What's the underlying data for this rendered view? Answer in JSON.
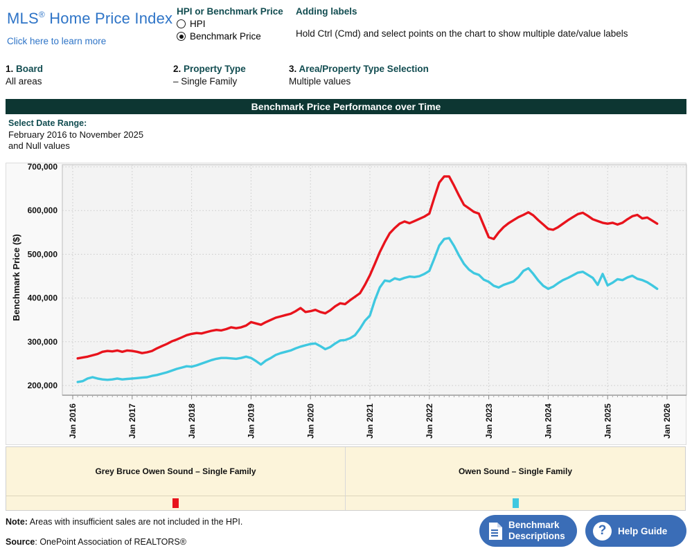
{
  "header": {
    "title": {
      "brand": "MLS",
      "reg": "®",
      "rest": " Home Price Index"
    },
    "learn_more": "Click here to learn more",
    "hpi_selector": {
      "heading": "HPI or Benchmark Price",
      "options": [
        {
          "label": "HPI",
          "selected": false
        },
        {
          "label": "Benchmark Price",
          "selected": true
        }
      ]
    },
    "adding_labels": {
      "heading": "Adding labels",
      "instruction": "Hold Ctrl (Cmd) and select points on the chart to show multiple date/value labels"
    }
  },
  "steps": [
    {
      "num": "1.",
      "label": "Board",
      "value": "All areas"
    },
    {
      "num": "2.",
      "label": "Property Type",
      "value": "– Single Family"
    },
    {
      "num": "3.",
      "label": "Area/Property Type Selection",
      "value": "Multiple values"
    }
  ],
  "banner": {
    "title": "Benchmark Price Performance over Time"
  },
  "date_range": {
    "heading": "Select Date Range:",
    "line1": "February 2016 to November 2025",
    "line2": "and Null values"
  },
  "chart_data": {
    "type": "line",
    "title": "Benchmark Price Performance over Time",
    "ylabel": "Benchmark Price ($)",
    "unit": "dollars (series values stored in thousands)",
    "x_monthly_start": "2016-02",
    "x_monthly_end": "2025-11",
    "x_tick_labels": [
      "Jan 2016",
      "Jan 2017",
      "Jan 2018",
      "Jan 2019",
      "Jan 2020",
      "Jan 2021",
      "Jan 2022",
      "Jan 2023",
      "Jan 2024",
      "Jan 2025",
      "Jan 2026"
    ],
    "y_tick_labels": [
      "200,000",
      "300,000",
      "400,000",
      "500,000",
      "600,000",
      "700,000"
    ],
    "ylim": [
      200000,
      700000
    ],
    "grid": true,
    "legend_position": "bottom",
    "series": [
      {
        "name": "Grey Bruce Owen Sound – Single Family",
        "color": "#e8131c",
        "values_thousands": [
          262,
          264,
          266,
          269,
          272,
          277,
          279,
          278,
          280,
          277,
          280,
          279,
          277,
          274,
          276,
          279,
          285,
          290,
          295,
          301,
          305,
          310,
          315,
          318,
          320,
          319,
          322,
          325,
          327,
          326,
          329,
          333,
          331,
          333,
          337,
          345,
          342,
          339,
          345,
          350,
          355,
          358,
          361,
          364,
          370,
          377,
          368,
          370,
          373,
          368,
          365,
          372,
          381,
          388,
          386,
          395,
          403,
          411,
          430,
          452,
          478,
          505,
          528,
          548,
          560,
          570,
          575,
          571,
          576,
          581,
          586,
          593,
          629,
          664,
          678,
          678,
          657,
          634,
          613,
          605,
          597,
          593,
          566,
          539,
          535,
          550,
          562,
          571,
          578,
          585,
          590,
          596,
          589,
          578,
          568,
          558,
          556,
          562,
          570,
          578,
          585,
          592,
          595,
          588,
          580,
          576,
          572,
          570,
          572,
          568,
          572,
          580,
          587,
          590,
          582,
          584,
          577,
          570
        ]
      },
      {
        "name": "Owen Sound – Single Family",
        "color": "#3fc8e0",
        "values_thousands": [
          208,
          210,
          216,
          219,
          216,
          214,
          213,
          214,
          216,
          214,
          215,
          216,
          217,
          218,
          219,
          222,
          224,
          227,
          230,
          234,
          238,
          241,
          244,
          243,
          246,
          250,
          254,
          258,
          261,
          263,
          263,
          262,
          261,
          263,
          266,
          263,
          256,
          248,
          257,
          263,
          270,
          274,
          277,
          280,
          285,
          289,
          292,
          295,
          296,
          290,
          283,
          288,
          296,
          303,
          304,
          308,
          315,
          330,
          348,
          360,
          395,
          424,
          440,
          438,
          445,
          442,
          446,
          449,
          448,
          450,
          455,
          462,
          490,
          520,
          535,
          537,
          519,
          497,
          478,
          465,
          457,
          453,
          442,
          437,
          428,
          424,
          430,
          434,
          438,
          448,
          462,
          468,
          455,
          440,
          428,
          421,
          426,
          434,
          441,
          446,
          452,
          458,
          460,
          453,
          446,
          430,
          455,
          429,
          435,
          443,
          441,
          447,
          451,
          444,
          441,
          436,
          429,
          421
        ]
      }
    ]
  },
  "legend": {
    "entries": [
      {
        "name": "Grey Bruce Owen Sound – Single Family",
        "color": "#e8131c"
      },
      {
        "name": "Owen Sound – Single Family",
        "color": "#3fc8e0"
      }
    ]
  },
  "footer": {
    "note_label": "Note:",
    "note_text": " Areas with insufficient sales are not included in the HPI.",
    "source_label": "Source",
    "source_text": ": OnePoint Association of REALTORS®",
    "benchmark_button": {
      "line1": "Benchmark",
      "line2": "Descriptions"
    },
    "help_button": {
      "label": "Help Guide",
      "icon_glyph": "?"
    }
  },
  "colors": {
    "accent_blue": "#2e74c7",
    "heading_teal": "#114c50",
    "banner_bg": "#0d3632",
    "button_blue": "#3a6db7",
    "legend_bg": "#fcf4da",
    "series_red": "#e8131c",
    "series_cyan": "#3fc8e0"
  }
}
